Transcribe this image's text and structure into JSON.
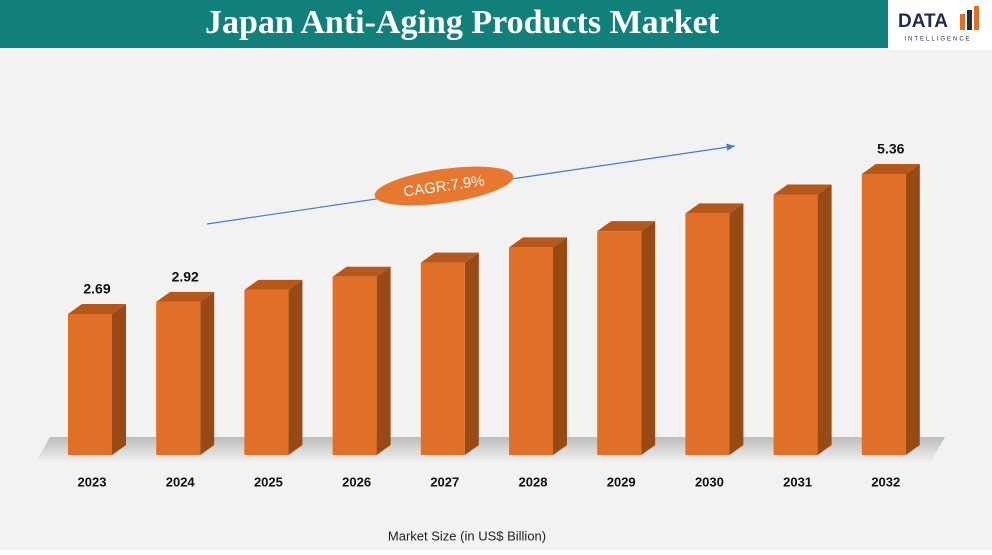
{
  "chart_data": {
    "type": "bar3d",
    "title": "Japan Anti-Aging Products Market",
    "x_label": "Market Size (in US$ Billion)",
    "annotation": "CAGR:7.9%",
    "categories": [
      "2023",
      "2024",
      "2025",
      "2026",
      "2027",
      "2028",
      "2029",
      "2030",
      "2031",
      "2032"
    ],
    "values": [
      2.69,
      2.92,
      3.15,
      3.4,
      3.67,
      3.96,
      4.27,
      4.61,
      4.97,
      5.36
    ],
    "show_value_labels": [
      true,
      true,
      false,
      false,
      false,
      false,
      false,
      false,
      false,
      true
    ],
    "color": "#e07028"
  },
  "logo": {
    "brand": "DATA",
    "tagline": "INTELLIGENCE"
  }
}
